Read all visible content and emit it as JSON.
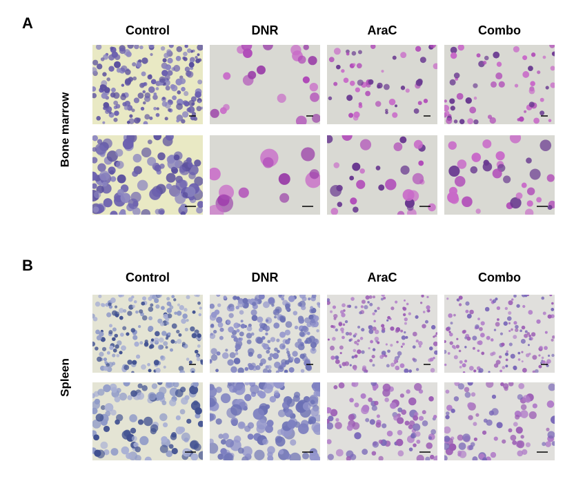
{
  "panels": [
    {
      "label": "A",
      "row_label": "Bone marrow",
      "columns": [
        "Control",
        "DNR",
        "AraC",
        "Combo"
      ]
    },
    {
      "label": "B",
      "row_label": "Spleen",
      "columns": [
        "Control",
        "DNR",
        "AraC",
        "Combo"
      ]
    }
  ]
}
